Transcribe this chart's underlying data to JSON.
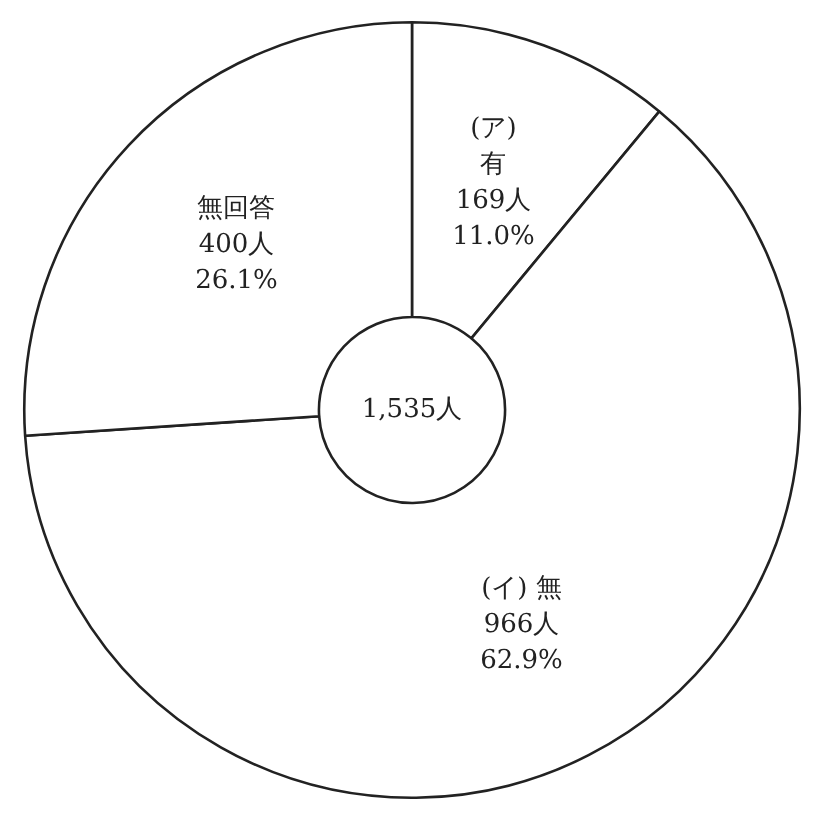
{
  "chart_data": {
    "type": "donut",
    "categories": [
      "(ア)\n有",
      "(イ) 無",
      "無回答"
    ],
    "values": [
      169,
      966,
      400
    ],
    "value_labels": [
      "169人\n11.0%",
      "966人\n62.9%",
      "400人\n26.1%"
    ],
    "colors": [
      "#ffffff",
      "#ffffff",
      "#ffffff"
    ],
    "annotations": [
      "1,535人"
    ],
    "legend": false
  }
}
